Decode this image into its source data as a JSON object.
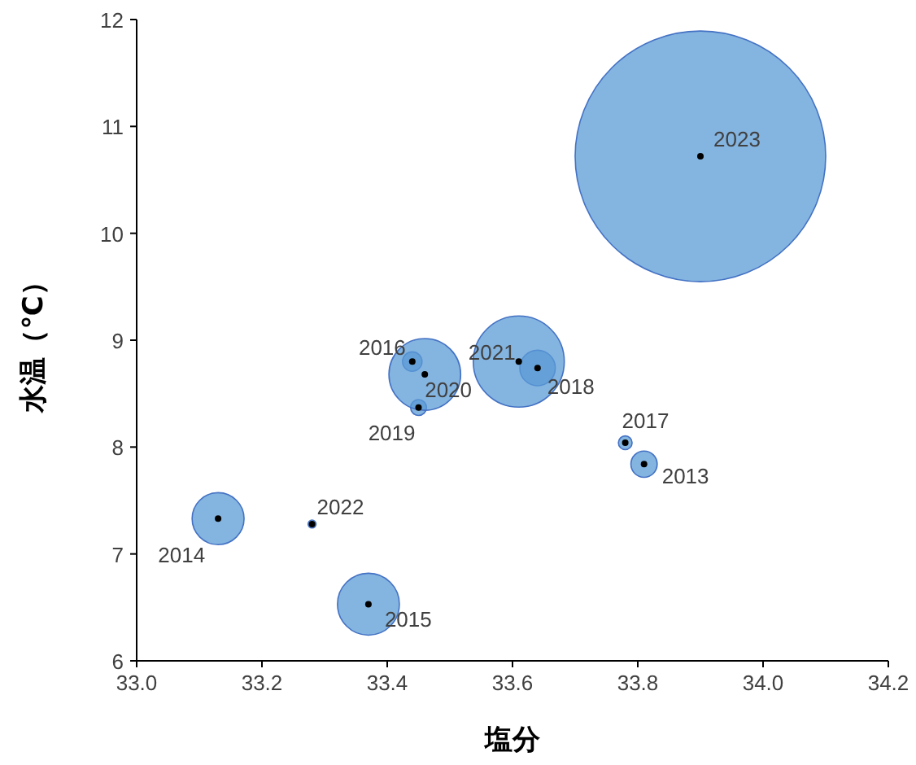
{
  "chart_data": {
    "type": "bubble",
    "xlabel": "塩分",
    "ylabel": "水温（℃）",
    "x": [
      33.81,
      33.13,
      33.37,
      33.44,
      33.78,
      33.64,
      33.45,
      33.46,
      33.61,
      33.28,
      33.9
    ],
    "series": [
      {
        "color": "#5b9bd5",
        "values": [
          7.84,
          7.33,
          6.53,
          8.8,
          8.04,
          8.74,
          8.37,
          8.68,
          8.8,
          7.28,
          10.72
        ],
        "sizes": [
          0.011,
          0.043,
          0.061,
          0.006,
          0.003,
          0.02,
          0.004,
          0.082,
          0.132,
          0.001,
          1
        ]
      },
      {
        "type": "scatter",
        "color": "#000000",
        "marker": "circle",
        "values": [
          7.84,
          7.33,
          6.53,
          8.8,
          8.04,
          8.74,
          8.37,
          8.68,
          8.8,
          7.28,
          10.72
        ]
      }
    ],
    "annotations": [
      {
        "text": "2013",
        "x": 33.81,
        "y": 7.84
      },
      {
        "text": "2014",
        "x": 33.13,
        "y": 7.33
      },
      {
        "text": "2015",
        "x": 33.37,
        "y": 6.53
      },
      {
        "text": "2016",
        "x": 33.44,
        "y": 8.8
      },
      {
        "text": "2017",
        "x": 33.78,
        "y": 8.04
      },
      {
        "text": "2018",
        "x": 33.64,
        "y": 8.74
      },
      {
        "text": "2019",
        "x": 33.45,
        "y": 8.37
      },
      {
        "text": "2020",
        "x": 33.46,
        "y": 8.68
      },
      {
        "text": "2021",
        "x": 33.61,
        "y": 8.8
      },
      {
        "text": "2022",
        "x": 33.28,
        "y": 7.28
      },
      {
        "text": "2023",
        "x": 33.9,
        "y": 10.72
      }
    ],
    "xlim": [
      33.0,
      34.2
    ],
    "xticks": [
      {
        "value": 33,
        "label": "33.0"
      },
      33.2,
      33.4,
      33.6,
      33.8,
      {
        "value": 34,
        "label": "34.0"
      },
      34.2
    ],
    "ylim": [
      6,
      12
    ],
    "yticks": [
      6,
      7,
      8,
      9,
      10,
      11,
      12
    ],
    "grid": false
  }
}
